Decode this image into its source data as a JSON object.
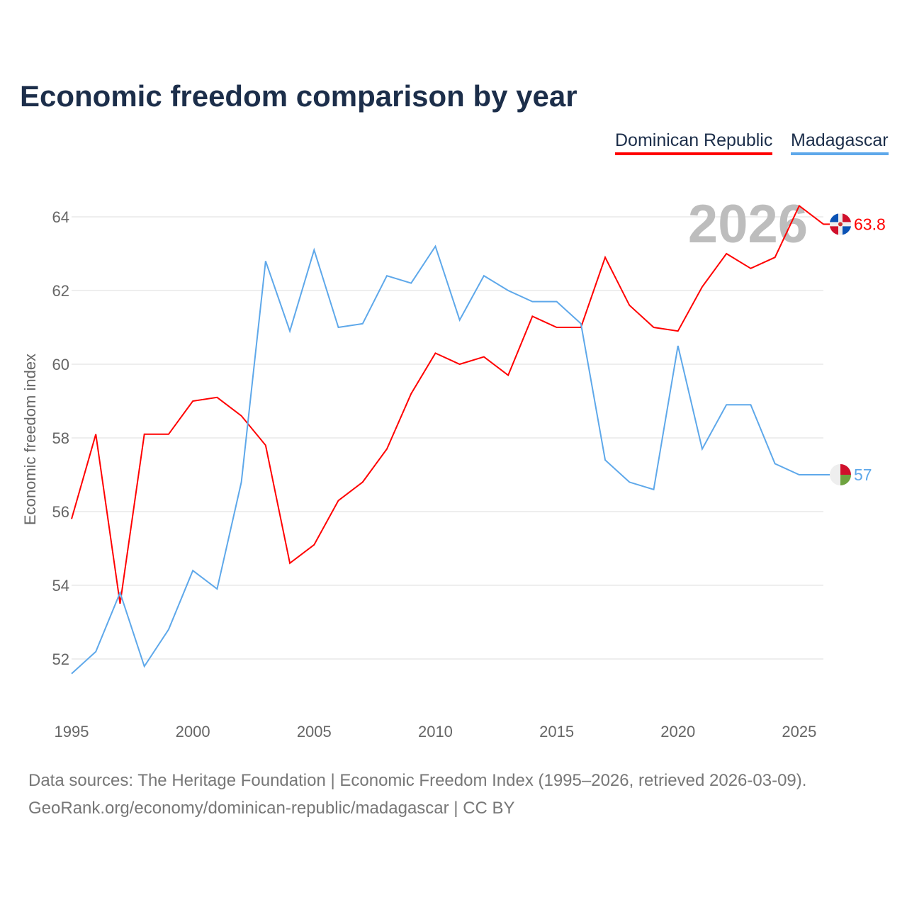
{
  "chart_data": {
    "type": "line",
    "title": "Economic freedom comparison by year",
    "xlabel": "",
    "ylabel": "Economic freedom index",
    "xlim": [
      1995,
      2026
    ],
    "ylim": [
      51,
      65
    ],
    "yticks": [
      52,
      54,
      56,
      58,
      60,
      62,
      64
    ],
    "xticks": [
      1995,
      2000,
      2005,
      2010,
      2015,
      2020,
      2025
    ],
    "grid": true,
    "legend_position": "top-right",
    "watermark_year": "2026",
    "x": [
      1995,
      1996,
      1997,
      1998,
      1999,
      2000,
      2001,
      2002,
      2003,
      2004,
      2005,
      2006,
      2007,
      2008,
      2009,
      2010,
      2011,
      2012,
      2013,
      2014,
      2015,
      2016,
      2017,
      2018,
      2019,
      2020,
      2021,
      2022,
      2023,
      2024,
      2025,
      2026
    ],
    "series": [
      {
        "name": "Dominican Republic",
        "color": "#ff0000",
        "end_label": "63.8",
        "values": [
          55.8,
          58.1,
          53.5,
          58.1,
          58.1,
          59.0,
          59.1,
          58.6,
          57.8,
          54.6,
          55.1,
          56.3,
          56.8,
          57.7,
          59.2,
          60.3,
          60.0,
          60.2,
          59.7,
          61.3,
          61.0,
          61.0,
          62.9,
          61.6,
          61.0,
          60.9,
          62.1,
          63.0,
          62.6,
          62.9,
          64.3,
          63.8
        ]
      },
      {
        "name": "Madagascar",
        "color": "#5ea8ea",
        "end_label": "57",
        "values": [
          51.6,
          52.2,
          53.8,
          51.8,
          52.8,
          54.4,
          53.9,
          56.8,
          62.8,
          60.9,
          63.1,
          61.0,
          61.1,
          62.4,
          62.2,
          63.2,
          61.2,
          62.4,
          62.0,
          61.7,
          61.7,
          61.1,
          57.4,
          56.8,
          56.6,
          60.5,
          57.7,
          58.9,
          58.9,
          57.3,
          57.0,
          57.0
        ]
      }
    ]
  },
  "footer": {
    "line1": "Data sources: The Heritage Foundation | Economic Freedom Index (1995–2026, retrieved 2026-03-09).",
    "line2": "GeoRank.org/economy/dominican-republic/madagascar | CC BY"
  }
}
